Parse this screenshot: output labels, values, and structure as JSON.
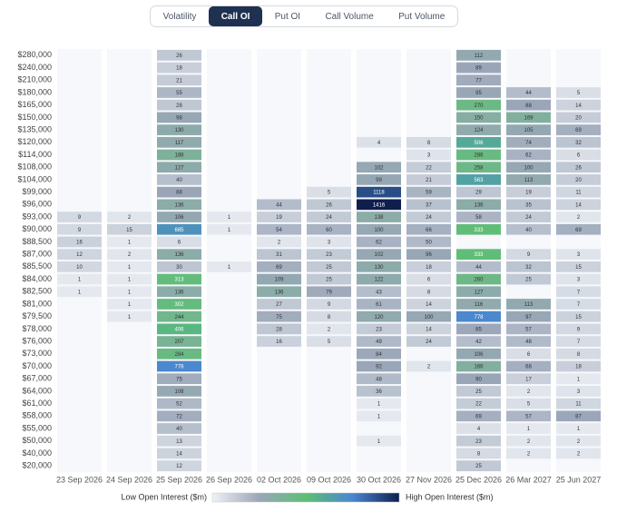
{
  "tabs": [
    "Volatility",
    "Call OI",
    "Put OI",
    "Call Volume",
    "Put Volume"
  ],
  "active_tab": 1,
  "chart_data": {
    "type": "heatmap",
    "x": [
      "23 Sep 2026",
      "24 Sep 2026",
      "25 Sep 2026",
      "26 Sep 2026",
      "02 Oct 2026",
      "09 Oct 2026",
      "30 Oct 2026",
      "27 Nov 2026",
      "25 Dec 2026",
      "26 Mar 2027",
      "25 Jun 2027"
    ],
    "y": [
      "$280,000",
      "$240,000",
      "$210,000",
      "$180,000",
      "$165,000",
      "$150,000",
      "$135,000",
      "$120,000",
      "$114,000",
      "$108,000",
      "$104,000",
      "$99,000",
      "$96,000",
      "$93,000",
      "$90,000",
      "$88,500",
      "$87,000",
      "$85,500",
      "$84,000",
      "$82,500",
      "$81,000",
      "$79,500",
      "$78,000",
      "$76,000",
      "$73,000",
      "$70,000",
      "$67,000",
      "$64,000",
      "$61,000",
      "$58,000",
      "$55,000",
      "$50,000",
      "$40,000",
      "$20,000"
    ],
    "z": [
      [
        null,
        null,
        null,
        null,
        null,
        null,
        null,
        null,
        null,
        null,
        null,
        null,
        null,
        9,
        9,
        16,
        12,
        10,
        1,
        1,
        null,
        null,
        null,
        null,
        null,
        null,
        null,
        null,
        null,
        null,
        null,
        null,
        null,
        null
      ],
      [
        null,
        null,
        null,
        null,
        null,
        null,
        null,
        null,
        null,
        null,
        null,
        null,
        null,
        2,
        15,
        1,
        2,
        1,
        1,
        1,
        1,
        1,
        null,
        null,
        null,
        null,
        null,
        null,
        null,
        null,
        null,
        null,
        null,
        null
      ],
      [
        26,
        18,
        21,
        55,
        28,
        98,
        130,
        117,
        188,
        127,
        40,
        88,
        136,
        106,
        685,
        6,
        136,
        30,
        313,
        136,
        302,
        244,
        406,
        207,
        284,
        778,
        75,
        108,
        52,
        72,
        40,
        13,
        14,
        12
      ],
      [
        null,
        null,
        null,
        null,
        null,
        null,
        null,
        null,
        null,
        null,
        null,
        null,
        null,
        1,
        1,
        null,
        null,
        1,
        null,
        null,
        null,
        null,
        null,
        null,
        null,
        null,
        null,
        null,
        null,
        null,
        null,
        null,
        null,
        null
      ],
      [
        null,
        null,
        null,
        null,
        null,
        null,
        null,
        null,
        null,
        null,
        null,
        null,
        44,
        19,
        54,
        2,
        31,
        69,
        109,
        136,
        27,
        75,
        28,
        16,
        null,
        null,
        null,
        null,
        null,
        null,
        null,
        null,
        null,
        null
      ],
      [
        null,
        null,
        null,
        null,
        null,
        null,
        null,
        null,
        null,
        null,
        null,
        5,
        26,
        24,
        60,
        3,
        23,
        25,
        25,
        79,
        9,
        8,
        2,
        5,
        null,
        null,
        null,
        null,
        null,
        null,
        null,
        null,
        null,
        null
      ],
      [
        null,
        null,
        null,
        null,
        null,
        null,
        null,
        4,
        null,
        102,
        99,
        1118,
        1416,
        138,
        100,
        62,
        102,
        130,
        122,
        43,
        61,
        120,
        23,
        49,
        84,
        92,
        48,
        36,
        1,
        1,
        null,
        1,
        null,
        null
      ],
      [
        null,
        null,
        null,
        null,
        null,
        null,
        null,
        8,
        3,
        22,
        21,
        59,
        37,
        24,
        66,
        50,
        96,
        18,
        6,
        8,
        14,
        100,
        14,
        24,
        null,
        2,
        null,
        null,
        null,
        null,
        null,
        null,
        null,
        null
      ],
      [
        112,
        89,
        77,
        95,
        270,
        150,
        124,
        506,
        286,
        258,
        563,
        29,
        136,
        58,
        333,
        null,
        333,
        44,
        260,
        127,
        116,
        778,
        85,
        42,
        106,
        166,
        90,
        25,
        22,
        69,
        4,
        23,
        8,
        25
      ],
      [
        null,
        null,
        null,
        44,
        88,
        169,
        105,
        74,
        62,
        100,
        113,
        19,
        35,
        24,
        40,
        null,
        9,
        32,
        25,
        null,
        113,
        97,
        57,
        48,
        6,
        68,
        17,
        2,
        5,
        57,
        1,
        2,
        2,
        null
      ],
      [
        null,
        null,
        null,
        5,
        14,
        20,
        69,
        32,
        6,
        26,
        20,
        11,
        14,
        2,
        69,
        null,
        3,
        15,
        3,
        7,
        7,
        15,
        9,
        7,
        8,
        18,
        1,
        3,
        11,
        87,
        1,
        2,
        2,
        null
      ]
    ],
    "colorscale": [
      "#eef1f6",
      "#9aa6b8",
      "#5cbf74",
      "#4a86d0",
      "#0f1f4d"
    ],
    "legend_low": "Low Open Interest ($m)",
    "legend_high": "High Open Interest ($m)"
  }
}
